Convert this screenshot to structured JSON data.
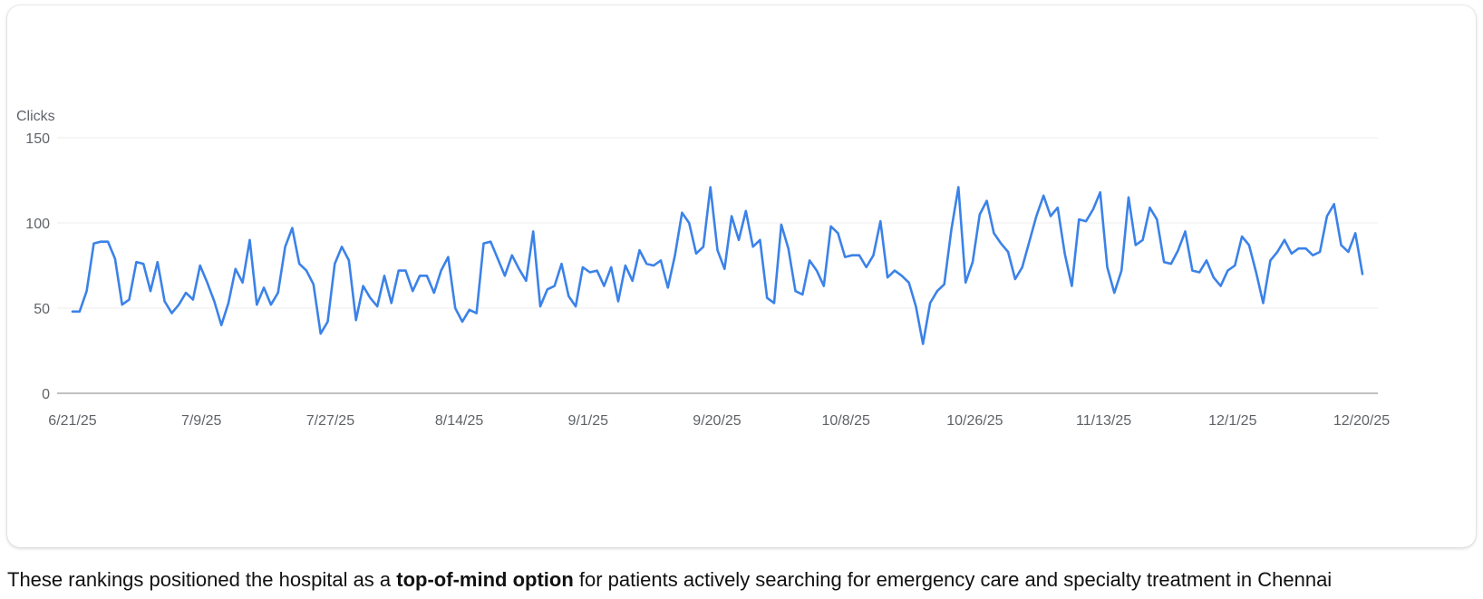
{
  "colors": {
    "line": "#3b82e8",
    "grid": "#ececec",
    "axis": "#9a9a9a",
    "text": "#5f6368"
  },
  "chart_data": {
    "type": "line",
    "ylabel": "Clicks",
    "ylim": [
      0,
      150
    ],
    "yticks": [
      0,
      50,
      100,
      150
    ],
    "xlabel": "",
    "grid": true,
    "x_start": "6/21/25",
    "x_end": "12/20/25",
    "xtick_labels": [
      "6/21/25",
      "7/9/25",
      "7/27/25",
      "8/14/25",
      "9/1/25",
      "9/20/25",
      "10/8/25",
      "10/26/25",
      "11/13/25",
      "12/1/25",
      "12/20/25"
    ],
    "series": [
      {
        "values": [
          48,
          48,
          60,
          88,
          89,
          89,
          79,
          52,
          55,
          77,
          76,
          60,
          77,
          54,
          47,
          52,
          59,
          55,
          75,
          65,
          54,
          40,
          53,
          73,
          65,
          90,
          52,
          62,
          52,
          59,
          86,
          97,
          76,
          72,
          64,
          35,
          42,
          76,
          86,
          78,
          43,
          63,
          56,
          51,
          69,
          53,
          72,
          72,
          60,
          69,
          69,
          59,
          72,
          80,
          50,
          42,
          49,
          47,
          88,
          89,
          79,
          69,
          81,
          73,
          66,
          95,
          51,
          61,
          63,
          76,
          57,
          51,
          74,
          71,
          72,
          63,
          74,
          54,
          75,
          66,
          84,
          76,
          75,
          78,
          62,
          81,
          106,
          100,
          82,
          86,
          121,
          84,
          73,
          104,
          90,
          107,
          86,
          90,
          56,
          53,
          99,
          85,
          60,
          58,
          78,
          72,
          63,
          98,
          94,
          80,
          81,
          81,
          74,
          81,
          101,
          68,
          72,
          69,
          65,
          51,
          29,
          53,
          60,
          64,
          96,
          121,
          65,
          77,
          105,
          113,
          94,
          88,
          83,
          67,
          74,
          89,
          104,
          116,
          104,
          109,
          82,
          63,
          102,
          101,
          108,
          118,
          74,
          59,
          72,
          115,
          87,
          90,
          109,
          102,
          77,
          76,
          84,
          95,
          72,
          71,
          78,
          68,
          63,
          72,
          75,
          92,
          87,
          71,
          53,
          78,
          83,
          90,
          82,
          85,
          85,
          81,
          83,
          104,
          111,
          87,
          83,
          94,
          70
        ]
      }
    ]
  },
  "caption": {
    "before": "These rankings positioned the hospital as a ",
    "bold": "top-of-mind option",
    "after": " for patients actively searching for emergency care and specialty treatment in Chennai"
  }
}
